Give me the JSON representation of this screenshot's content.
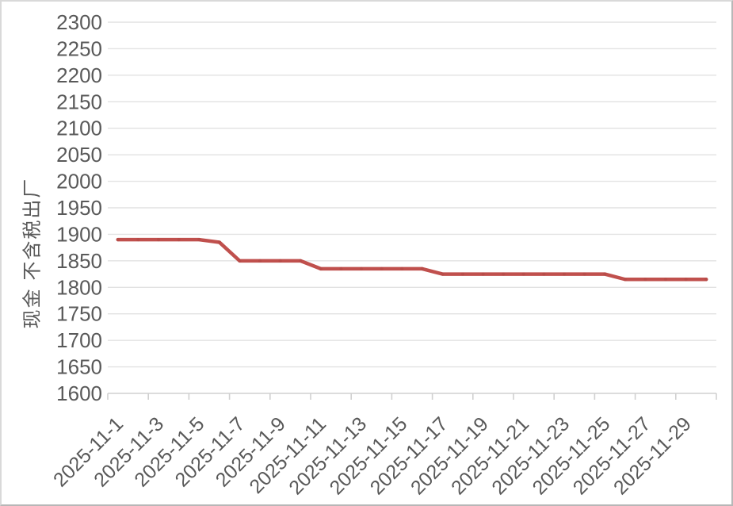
{
  "chart_data": {
    "type": "line",
    "title": "",
    "xlabel": "",
    "ylabel": "现金 不含税出厂",
    "x": [
      "2025-11-1",
      "2025-11-2",
      "2025-11-3",
      "2025-11-4",
      "2025-11-5",
      "2025-11-6",
      "2025-11-7",
      "2025-11-8",
      "2025-11-9",
      "2025-11-10",
      "2025-11-11",
      "2025-11-12",
      "2025-11-13",
      "2025-11-14",
      "2025-11-15",
      "2025-11-16",
      "2025-11-17",
      "2025-11-18",
      "2025-11-19",
      "2025-11-20",
      "2025-11-21",
      "2025-11-22",
      "2025-11-23",
      "2025-11-24",
      "2025-11-25",
      "2025-11-26",
      "2025-11-27",
      "2025-11-28",
      "2025-11-29",
      "2025-11-30"
    ],
    "values": [
      1890,
      1890,
      1890,
      1890,
      1890,
      1885,
      1850,
      1850,
      1850,
      1850,
      1835,
      1835,
      1835,
      1835,
      1835,
      1835,
      1825,
      1825,
      1825,
      1825,
      1825,
      1825,
      1825,
      1825,
      1825,
      1815,
      1815,
      1815,
      1815,
      1815
    ],
    "x_tick_labels": [
      "2025-11-1",
      "2025-11-3",
      "2025-11-5",
      "2025-11-7",
      "2025-11-9",
      "2025-11-11",
      "2025-11-13",
      "2025-11-15",
      "2025-11-17",
      "2025-11-19",
      "2025-11-21",
      "2025-11-23",
      "2025-11-25",
      "2025-11-27",
      "2025-11-29"
    ],
    "y_tick_labels": [
      "1600",
      "1650",
      "1700",
      "1750",
      "1800",
      "1850",
      "1900",
      "1950",
      "2000",
      "2050",
      "2100",
      "2150",
      "2200",
      "2250",
      "2300"
    ],
    "ylim": [
      1600,
      2300
    ],
    "y_tick_step": 50,
    "grid": true,
    "legend": "none",
    "colors": {
      "line": "#c0504d",
      "marker": "#b04845",
      "gridline": "#e2e2e2",
      "axis_line": "#d0d0d0",
      "tick_mark": "#d0d0d0",
      "axis_text": "#595959"
    }
  }
}
